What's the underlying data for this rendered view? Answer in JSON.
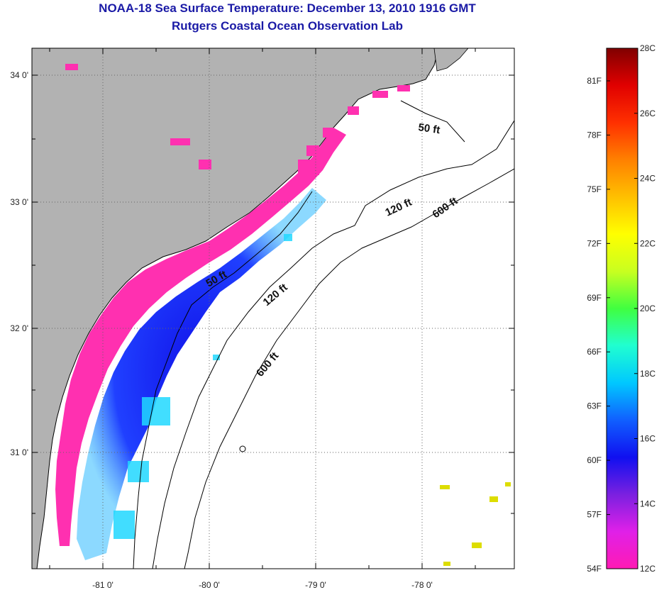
{
  "title": "NOAA-18 Sea Surface Temperature:  December 13, 2010 1916 GMT",
  "subtitle": "Rutgers Coastal Ocean Observation Lab",
  "map": {
    "lat_labels": [
      "34 0'",
      "33 0'",
      "32 0'",
      "31 0'"
    ],
    "lon_labels": [
      "-81 0'",
      "-80 0'",
      "-79 0'",
      "-78 0'"
    ],
    "contour_labels": [
      "50 ft",
      "120 ft",
      "600 ft",
      "50 ft",
      "120 ft",
      "600 ft"
    ],
    "colors": {
      "land": "#b2b2b2",
      "ocean": "#ffffff",
      "coast": "#000000"
    }
  },
  "colorbar": {
    "celsius_labels": [
      "28C",
      "26C",
      "24C",
      "22C",
      "20C",
      "18C",
      "16C",
      "14C",
      "12C"
    ],
    "fahrenheit_labels": [
      "81F",
      "78F",
      "75F",
      "72F",
      "69F",
      "66F",
      "63F",
      "60F",
      "57F",
      "54F"
    ],
    "stops": [
      "#ff1ab4",
      "#e020e8",
      "#7a20e0",
      "#1010f0",
      "#1060ff",
      "#00c8ff",
      "#20ffd0",
      "#40ff40",
      "#c8ff20",
      "#ffff00",
      "#ffc000",
      "#ff8000",
      "#ff3000",
      "#e00000",
      "#800000"
    ]
  }
}
